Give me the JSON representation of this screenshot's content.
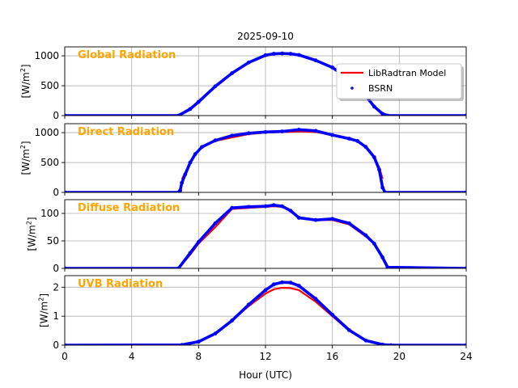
{
  "figure": {
    "title": "2025-09-10",
    "xlabel": "Hour (UTC)",
    "xlim": [
      0,
      24
    ],
    "xticks": [
      0,
      4,
      8,
      12,
      16,
      20,
      24
    ]
  },
  "legend": {
    "placement": "top-right of first panel",
    "model_label": "LibRadtran Model",
    "obs_label": "BSRN"
  },
  "colors": {
    "model": "#ff0000",
    "obs": "#0000ff",
    "panel_label": "#ffa500",
    "grid": "#b0b0b0",
    "axis": "#000000"
  },
  "chart_data": [
    {
      "type": "line",
      "name": "Global Radiation",
      "panel_label": "Global Radiation",
      "ylabel_text": "[W/m",
      "ylabel_sup": "2",
      "ylabel_end": "]",
      "ylim": [
        0,
        1150
      ],
      "yticks": [
        0,
        500,
        1000
      ],
      "grid": true,
      "x": [
        0,
        6.8,
        7.5,
        8,
        9,
        10,
        11,
        12,
        12.5,
        13,
        13.5,
        14,
        15,
        16,
        17,
        17.5,
        18,
        18.5,
        19,
        19.3,
        24
      ],
      "series": [
        {
          "name": "LibRadtran Model",
          "style": "line",
          "values": [
            0,
            0,
            100,
            220,
            480,
            700,
            880,
            1000,
            1025,
            1035,
            1030,
            1010,
            920,
            800,
            610,
            470,
            330,
            150,
            30,
            0,
            0
          ]
        },
        {
          "name": "BSRN",
          "style": "dots",
          "values": [
            0,
            0,
            110,
            230,
            490,
            710,
            890,
            1010,
            1035,
            1040,
            1035,
            1015,
            925,
            805,
            610,
            475,
            330,
            150,
            30,
            0,
            0
          ]
        }
      ]
    },
    {
      "type": "line",
      "name": "Direct Radiation",
      "panel_label": "Direct Radiation",
      "ylabel_text": "[W/m",
      "ylabel_sup": "2",
      "ylabel_end": "]",
      "ylim": [
        0,
        1150
      ],
      "yticks": [
        0,
        500,
        1000
      ],
      "grid": true,
      "x": [
        0,
        6.8,
        6.9,
        7,
        7.2,
        7.5,
        7.8,
        8.2,
        9,
        10,
        11,
        12,
        13,
        14,
        15,
        16,
        17,
        17.5,
        18,
        18.5,
        18.8,
        19,
        19.15,
        24
      ],
      "series": [
        {
          "name": "LibRadtran Model",
          "style": "line",
          "values": [
            null,
            null,
            null,
            220,
            330,
            500,
            640,
            760,
            860,
            920,
            975,
            1000,
            1010,
            1020,
            1010,
            960,
            900,
            860,
            760,
            590,
            420,
            230,
            null,
            null
          ]
        },
        {
          "name": "BSRN",
          "style": "dots",
          "values": [
            0,
            0,
            30,
            160,
            300,
            500,
            640,
            760,
            870,
            950,
            990,
            1010,
            1020,
            1050,
            1030,
            960,
            900,
            860,
            760,
            590,
            380,
            80,
            0,
            0
          ]
        }
      ]
    },
    {
      "type": "line",
      "name": "Diffuse Radiation",
      "panel_label": "Diffuse Radiation",
      "ylabel_text": "[W/m",
      "ylabel_sup": "2",
      "ylabel_end": "]",
      "ylim": [
        0,
        125
      ],
      "yticks": [
        0,
        50,
        100
      ],
      "grid": true,
      "x": [
        0,
        6.8,
        7.5,
        8,
        9,
        10,
        11,
        12,
        12.5,
        13,
        13.5,
        14,
        15,
        16,
        17,
        18,
        18.5,
        19,
        19.3,
        24
      ],
      "series": [
        {
          "name": "LibRadtran Model",
          "style": "line",
          "values": [
            0,
            0,
            25,
            45,
            75,
            108,
            110,
            112,
            113,
            112,
            105,
            92,
            88,
            88,
            80,
            58,
            45,
            20,
            2,
            0
          ]
        },
        {
          "name": "BSRN",
          "style": "dots",
          "values": [
            0,
            0,
            28,
            48,
            82,
            110,
            112,
            113,
            115,
            113,
            105,
            92,
            88,
            90,
            82,
            60,
            45,
            20,
            2,
            0
          ]
        }
      ]
    },
    {
      "type": "line",
      "name": "UVB Radiation",
      "panel_label": "UVB Radiation",
      "ylabel_text": "[W/m",
      "ylabel_sup": "2",
      "ylabel_end": "]",
      "ylim": [
        0,
        2.4
      ],
      "yticks": [
        0,
        1,
        2
      ],
      "grid": true,
      "x": [
        0,
        7,
        8,
        9,
        10,
        11,
        12,
        12.5,
        13,
        13.5,
        14,
        15,
        16,
        17,
        18,
        19,
        19.5,
        24
      ],
      "series": [
        {
          "name": "LibRadtran Model",
          "style": "line",
          "values": [
            0,
            0.01,
            0.12,
            0.4,
            0.85,
            1.35,
            1.78,
            1.93,
            1.98,
            1.97,
            1.9,
            1.5,
            1.0,
            0.5,
            0.15,
            0.02,
            0,
            0
          ]
        },
        {
          "name": "BSRN",
          "style": "dots",
          "values": [
            0,
            0.01,
            0.12,
            0.4,
            0.85,
            1.4,
            1.9,
            2.1,
            2.17,
            2.16,
            2.05,
            1.6,
            1.05,
            0.52,
            0.16,
            0.02,
            0,
            0
          ]
        }
      ]
    }
  ]
}
